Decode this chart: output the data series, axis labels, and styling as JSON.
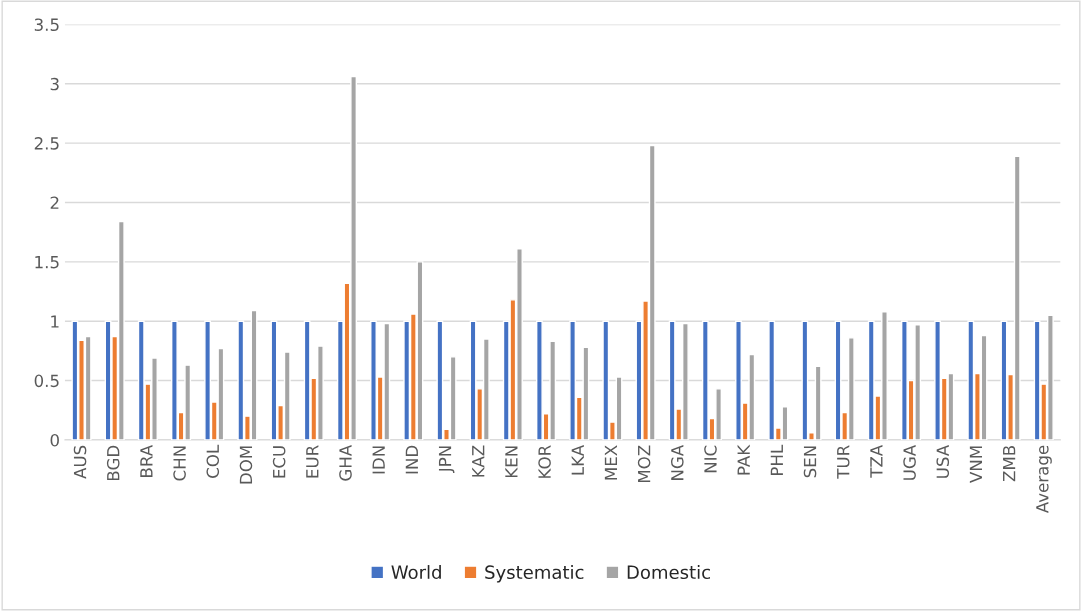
{
  "chart_data": {
    "type": "bar",
    "categories": [
      "AUS",
      "BGD",
      "BRA",
      "CHN",
      "COL",
      "DOM",
      "ECU",
      "EUR",
      "GHA",
      "IDN",
      "IND",
      "JPN",
      "KAZ",
      "KEN",
      "KOR",
      "LKA",
      "MEX",
      "MOZ",
      "NGA",
      "NIC",
      "PAK",
      "PHL",
      "SEN",
      "TUR",
      "TZA",
      "UGA",
      "USA",
      "VNM",
      "ZMB",
      "Average"
    ],
    "series": [
      {
        "name": "World",
        "color": "#4472c4",
        "values": [
          1,
          1,
          1,
          1,
          1,
          1,
          1,
          1,
          1,
          1,
          1,
          1,
          1,
          1,
          1,
          1,
          1,
          1,
          1,
          1,
          1,
          1,
          1,
          1,
          1,
          1,
          1,
          1,
          1,
          1
        ]
      },
      {
        "name": "Systematic",
        "color": "#ed7d31",
        "values": [
          0.84,
          0.87,
          0.47,
          0.23,
          0.32,
          0.2,
          0.29,
          0.52,
          1.32,
          0.53,
          1.06,
          0.09,
          0.43,
          1.18,
          0.22,
          0.36,
          0.15,
          1.17,
          0.26,
          0.18,
          0.31,
          0.1,
          0.06,
          0.23,
          0.37,
          0.5,
          0.52,
          0.56,
          0.55,
          0.47
        ]
      },
      {
        "name": "Domestic",
        "color": "#a5a5a5",
        "values": [
          0.87,
          1.84,
          0.69,
          0.63,
          0.77,
          1.09,
          0.74,
          0.79,
          3.06,
          0.98,
          1.5,
          0.7,
          0.85,
          1.61,
          0.83,
          0.78,
          0.53,
          2.48,
          0.98,
          0.43,
          0.72,
          0.28,
          0.62,
          0.86,
          1.08,
          0.97,
          0.56,
          0.88,
          2.39,
          1.05
        ]
      }
    ],
    "ylim": [
      0,
      3.5
    ],
    "yticks": [
      0,
      0.5,
      1,
      1.5,
      2,
      2.5,
      3,
      3.5
    ],
    "grid": "y",
    "legend": "bottom"
  }
}
